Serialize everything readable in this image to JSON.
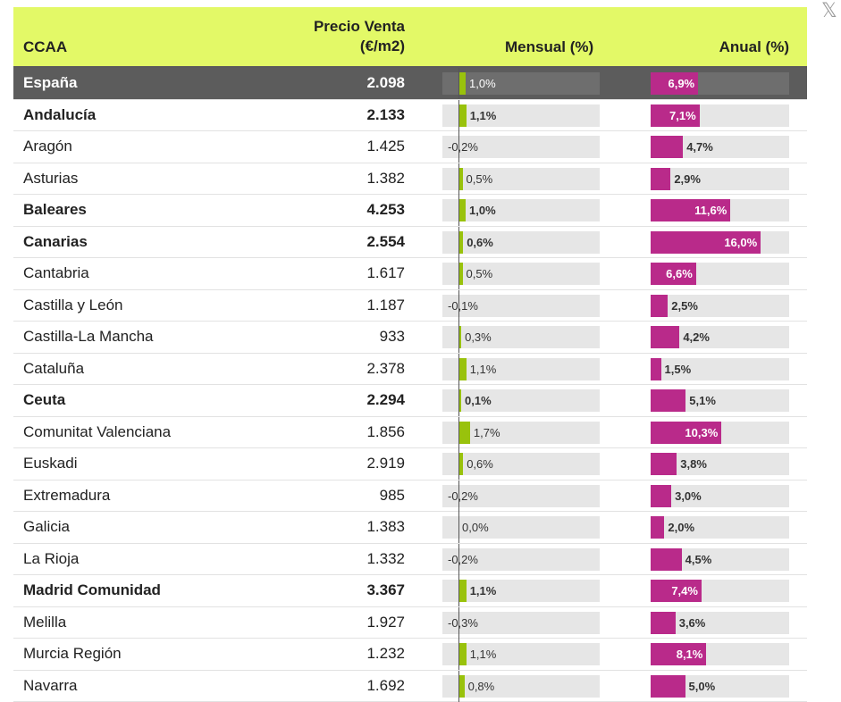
{
  "close_glyph": "𝕏",
  "header": {
    "ccaa": "CCAA",
    "price_line1": "Precio Venta",
    "price_line2": "(€/m2)",
    "mensual": "Mensual (%)",
    "anual": "Anual (%)"
  },
  "colors": {
    "header_bg": "#e3f967",
    "mensual_bar": "#99c20c",
    "anual_bar": "#b92a8a",
    "total_row_bg": "#5c5c5c"
  },
  "chart_data": {
    "type": "table",
    "columns": [
      "CCAA",
      "Precio Venta (€/m2)",
      "Mensual (%)",
      "Anual (%)"
    ],
    "rows": [
      {
        "name": "España",
        "price": "2.098",
        "mensual": 1.0,
        "mensual_label": "1,0%",
        "anual": 6.9,
        "anual_label": "6,9%",
        "bold": true,
        "total": true
      },
      {
        "name": "Andalucía",
        "price": "2.133",
        "mensual": 1.1,
        "mensual_label": "1,1%",
        "anual": 7.1,
        "anual_label": "7,1%",
        "bold": true
      },
      {
        "name": "Aragón",
        "price": "1.425",
        "mensual": -0.2,
        "mensual_label": "-0,2%",
        "anual": 4.7,
        "anual_label": "4,7%",
        "bold": false
      },
      {
        "name": "Asturias",
        "price": "1.382",
        "mensual": 0.5,
        "mensual_label": "0,5%",
        "anual": 2.9,
        "anual_label": "2,9%",
        "bold": false
      },
      {
        "name": "Baleares",
        "price": "4.253",
        "mensual": 1.0,
        "mensual_label": "1,0%",
        "anual": 11.6,
        "anual_label": "11,6%",
        "bold": true
      },
      {
        "name": "Canarias",
        "price": "2.554",
        "mensual": 0.6,
        "mensual_label": "0,6%",
        "anual": 16.0,
        "anual_label": "16,0%",
        "bold": true
      },
      {
        "name": "Cantabria",
        "price": "1.617",
        "mensual": 0.5,
        "mensual_label": "0,5%",
        "anual": 6.6,
        "anual_label": "6,6%",
        "bold": false
      },
      {
        "name": "Castilla y León",
        "price": "1.187",
        "mensual": -0.1,
        "mensual_label": "-0,1%",
        "anual": 2.5,
        "anual_label": "2,5%",
        "bold": false
      },
      {
        "name": "Castilla-La Mancha",
        "price": "933",
        "mensual": 0.3,
        "mensual_label": "0,3%",
        "anual": 4.2,
        "anual_label": "4,2%",
        "bold": false
      },
      {
        "name": "Cataluña",
        "price": "2.378",
        "mensual": 1.1,
        "mensual_label": "1,1%",
        "anual": 1.5,
        "anual_label": "1,5%",
        "bold": false
      },
      {
        "name": "Ceuta",
        "price": "2.294",
        "mensual": 0.1,
        "mensual_label": "0,1%",
        "anual": 5.1,
        "anual_label": "5,1%",
        "bold": true
      },
      {
        "name": "Comunitat Valenciana",
        "price": "1.856",
        "mensual": 1.7,
        "mensual_label": "1,7%",
        "anual": 10.3,
        "anual_label": "10,3%",
        "bold": false
      },
      {
        "name": "Euskadi",
        "price": "2.919",
        "mensual": 0.6,
        "mensual_label": "0,6%",
        "anual": 3.8,
        "anual_label": "3,8%",
        "bold": false
      },
      {
        "name": "Extremadura",
        "price": "985",
        "mensual": -0.2,
        "mensual_label": "-0,2%",
        "anual": 3.0,
        "anual_label": "3,0%",
        "bold": false
      },
      {
        "name": "Galicia",
        "price": "1.383",
        "mensual": 0.0,
        "mensual_label": "0,0%",
        "anual": 2.0,
        "anual_label": "2,0%",
        "bold": false
      },
      {
        "name": "La Rioja",
        "price": "1.332",
        "mensual": -0.2,
        "mensual_label": "-0,2%",
        "anual": 4.5,
        "anual_label": "4,5%",
        "bold": false
      },
      {
        "name": "Madrid Comunidad",
        "price": "3.367",
        "mensual": 1.1,
        "mensual_label": "1,1%",
        "anual": 7.4,
        "anual_label": "7,4%",
        "bold": true
      },
      {
        "name": "Melilla",
        "price": "1.927",
        "mensual": -0.3,
        "mensual_label": "-0,3%",
        "anual": 3.6,
        "anual_label": "3,6%",
        "bold": false
      },
      {
        "name": "Murcia Región",
        "price": "1.232",
        "mensual": 1.1,
        "mensual_label": "1,1%",
        "anual": 8.1,
        "anual_label": "8,1%",
        "bold": false
      },
      {
        "name": "Navarra",
        "price": "1.692",
        "mensual": 0.8,
        "mensual_label": "0,8%",
        "anual": 5.0,
        "anual_label": "5,0%",
        "bold": false
      }
    ]
  }
}
